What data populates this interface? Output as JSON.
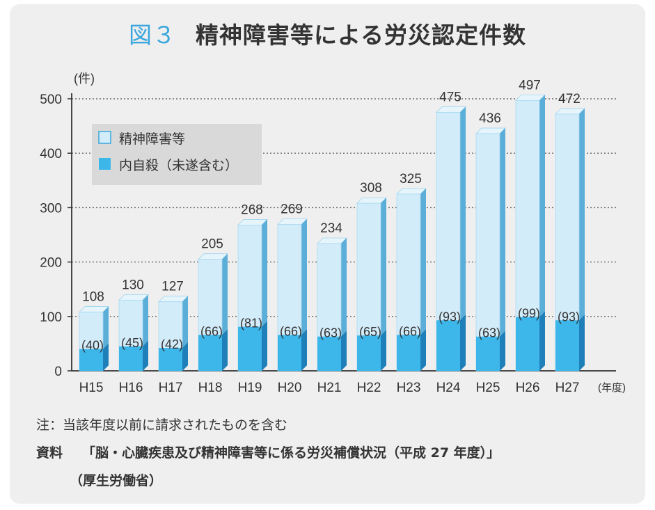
{
  "figure": {
    "label": "図３",
    "title": "精神障害等による労災認定件数"
  },
  "chart_data": {
    "type": "bar",
    "ylabel": "(件)",
    "xunit": "(年度)",
    "ylim": [
      0,
      500
    ],
    "yticks": [
      0,
      100,
      200,
      300,
      400,
      500
    ],
    "grid": true,
    "legend_position": "top-left",
    "categories": [
      "H15",
      "H16",
      "H17",
      "H18",
      "H19",
      "H20",
      "H21",
      "H22",
      "H23",
      "H24",
      "H25",
      "H26",
      "H27"
    ],
    "series": [
      {
        "name": "精神障害等",
        "values": [
          108,
          130,
          127,
          205,
          268,
          269,
          234,
          308,
          325,
          475,
          436,
          497,
          472
        ],
        "color": "#d3ecf9"
      },
      {
        "name": "内自殺（未遂含む）",
        "values": [
          40,
          45,
          42,
          66,
          81,
          66,
          63,
          65,
          66,
          93,
          63,
          99,
          93
        ],
        "color": "#3db6ea"
      }
    ],
    "total_labels": [
      "108",
      "130",
      "127",
      "205",
      "268",
      "269",
      "234",
      "308",
      "325",
      "475",
      "436",
      "497",
      "472"
    ],
    "suicide_labels": [
      "(40)",
      "(45)",
      "(42)",
      "(66)",
      "(81)",
      "(66)",
      "(63)",
      "(65)",
      "(66)",
      "(93)",
      "(63)",
      "(99)",
      "(93)"
    ]
  },
  "notes": {
    "note": "注：当該年度以前に請求されたものを含む",
    "source_label": "資料",
    "source_text": "「脳・心臓疾患及び精神障害等に係る労災補償状況（平成 27 年度）」",
    "source_sub": "（厚生労働省）"
  }
}
